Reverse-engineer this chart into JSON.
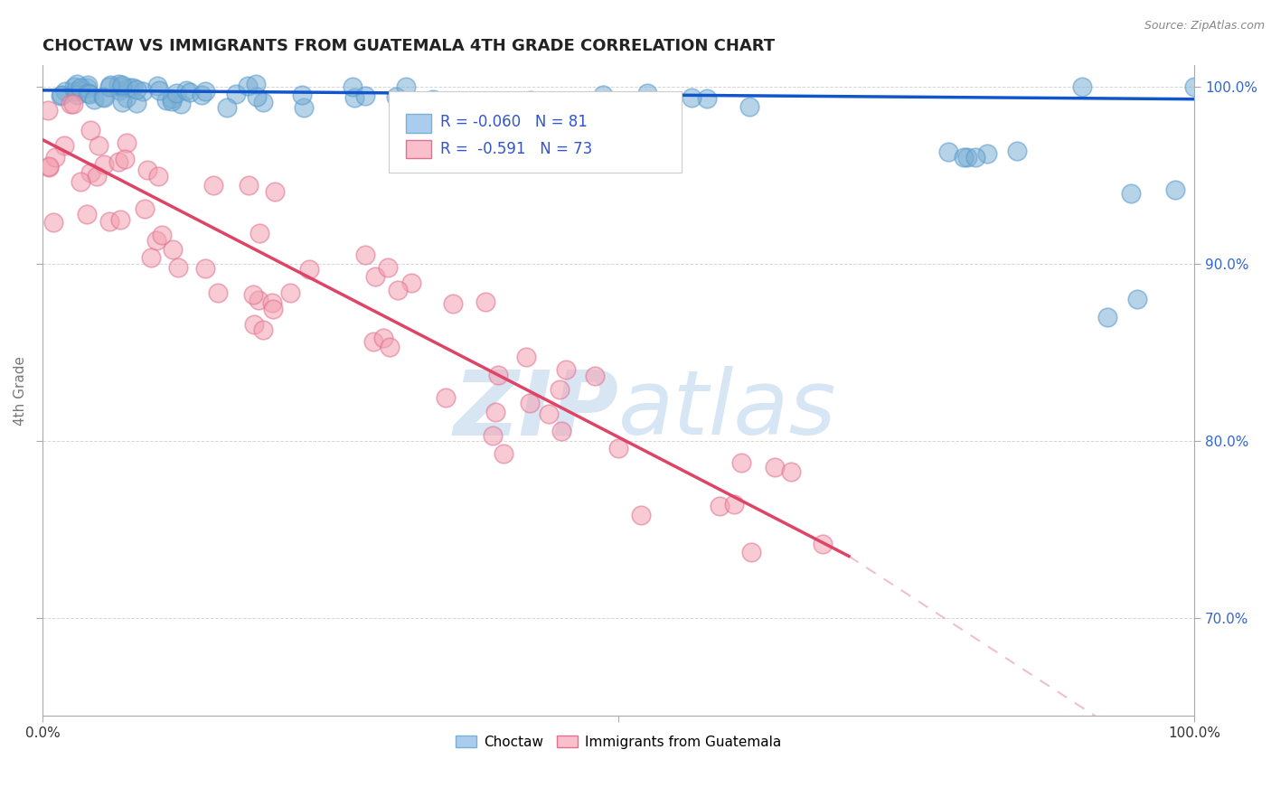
{
  "title": "CHOCTAW VS IMMIGRANTS FROM GUATEMALA 4TH GRADE CORRELATION CHART",
  "source": "Source: ZipAtlas.com",
  "ylabel": "4th Grade",
  "xlim": [
    0.0,
    1.0
  ],
  "ylim": [
    0.645,
    1.012
  ],
  "yticks": [
    0.7,
    0.8,
    0.9,
    1.0
  ],
  "ytick_labels": [
    "70.0%",
    "80.0%",
    "90.0%",
    "100.0%"
  ],
  "blue_color": "#7BAFD4",
  "blue_edge_color": "#5599CC",
  "pink_color": "#F4A0B0",
  "pink_edge_color": "#E07090",
  "blue_line_color": "#1155CC",
  "pink_line_color": "#DD4466",
  "pink_dash_color": "#EEB0C0",
  "grid_color": "#CCCCCC",
  "title_color": "#222222",
  "axis_label_color": "#777777",
  "right_tick_color": "#3366CC",
  "source_color": "#888888",
  "legend_text_color": "#3355CC",
  "blue_line_y_start": 0.998,
  "blue_line_y_end": 0.993,
  "pink_line_x_start": 0.0,
  "pink_line_y_start": 0.97,
  "pink_line_x_solid_end": 0.7,
  "pink_line_y_solid_end": 0.735,
  "pink_line_x_dash_end": 1.02,
  "pink_line_y_dash_end": 0.6
}
